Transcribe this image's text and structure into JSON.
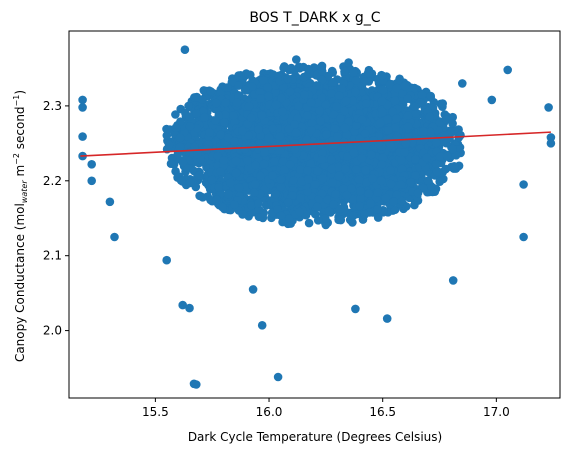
{
  "chart_data": {
    "type": "scatter",
    "title": "BOS T_DARK x g_C",
    "xlabel": "Dark Cycle Temperature (Degrees Celsius)",
    "ylabel": {
      "main": "Canopy Conductance (mol",
      "sub": "water",
      "mid": " m",
      "sup1": "−2",
      "mid2": " second",
      "sup2": "−1",
      "end": ")"
    },
    "xlim": [
      15.12,
      17.28
    ],
    "ylim": [
      1.91,
      2.4
    ],
    "xticks": [
      15.5,
      16.0,
      16.5,
      17.0
    ],
    "xtick_labels": [
      "15.5",
      "16.0",
      "16.5",
      "17.0"
    ],
    "yticks": [
      2.0,
      2.1,
      2.2,
      2.3
    ],
    "ytick_labels": [
      "2.0",
      "2.1",
      "2.2",
      "2.3"
    ],
    "grid": false,
    "legend": "none",
    "point_color": "#1f77b4",
    "fit_color": "#d62728",
    "fit_line": {
      "x": [
        15.17,
        17.24
      ],
      "y": [
        2.233,
        2.265
      ]
    },
    "outliers": [
      {
        "x": 15.67,
        "y": 1.929
      },
      {
        "x": 15.68,
        "y": 1.928
      },
      {
        "x": 16.04,
        "y": 1.938
      },
      {
        "x": 15.97,
        "y": 2.007
      },
      {
        "x": 16.52,
        "y": 2.016
      },
      {
        "x": 15.63,
        "y": 2.375
      },
      {
        "x": 15.18,
        "y": 2.308
      },
      {
        "x": 15.18,
        "y": 2.298
      },
      {
        "x": 15.18,
        "y": 2.259
      },
      {
        "x": 15.18,
        "y": 2.233
      },
      {
        "x": 15.22,
        "y": 2.222
      },
      {
        "x": 15.22,
        "y": 2.2
      },
      {
        "x": 17.23,
        "y": 2.298
      },
      {
        "x": 17.24,
        "y": 2.258
      },
      {
        "x": 17.24,
        "y": 2.25
      },
      {
        "x": 17.12,
        "y": 2.125
      },
      {
        "x": 17.05,
        "y": 2.348
      },
      {
        "x": 16.98,
        "y": 2.308
      },
      {
        "x": 17.12,
        "y": 2.195
      },
      {
        "x": 15.62,
        "y": 2.034
      },
      {
        "x": 15.65,
        "y": 2.03
      },
      {
        "x": 15.93,
        "y": 2.055
      },
      {
        "x": 16.38,
        "y": 2.029
      },
      {
        "x": 16.81,
        "y": 2.067
      },
      {
        "x": 16.35,
        "y": 2.358
      },
      {
        "x": 16.12,
        "y": 2.362
      },
      {
        "x": 16.85,
        "y": 2.33
      },
      {
        "x": 15.32,
        "y": 2.125
      },
      {
        "x": 15.3,
        "y": 2.172
      },
      {
        "x": 15.55,
        "y": 2.094
      }
    ],
    "cloud": {
      "description_of_distribution": "dense cloud of several thousand points",
      "x_mean": 16.2,
      "x_sd": 0.3,
      "y_mean": 2.248,
      "y_sd": 0.052,
      "count": 6000
    }
  }
}
